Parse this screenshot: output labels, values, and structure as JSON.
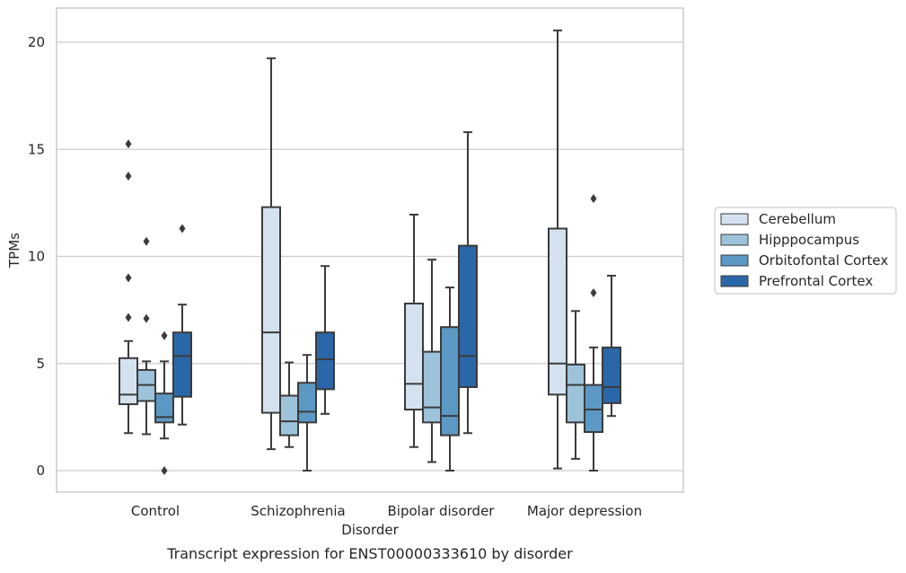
{
  "chart_data": {
    "type": "box",
    "title": "",
    "caption": "Transcript expression for ENST00000333610 by disorder",
    "xlabel": "Disorder",
    "ylabel": "TPMs",
    "categories": [
      "Control",
      "Schizophrenia",
      "Bipolar disorder",
      "Major depression"
    ],
    "ylim": [
      -1,
      21.6
    ],
    "yticks": [
      0,
      5,
      10,
      15,
      20
    ],
    "grid": "horizontal",
    "legend_position": "right",
    "series": [
      {
        "name": "Cerebellum",
        "color": "#d4e2f0",
        "boxes": [
          {
            "min": 1.75,
            "q1": 3.1,
            "median": 3.55,
            "q3": 5.25,
            "max": 6.05,
            "outliers": [
              15.25,
              13.75,
              9.0,
              7.15
            ]
          },
          {
            "min": 1.0,
            "q1": 2.7,
            "median": 6.45,
            "q3": 12.3,
            "max": 19.25,
            "outliers": []
          },
          {
            "min": 1.1,
            "q1": 2.85,
            "median": 4.05,
            "q3": 7.8,
            "max": 11.95,
            "outliers": []
          },
          {
            "min": 0.1,
            "q1": 3.55,
            "median": 5.0,
            "q3": 11.3,
            "max": 20.55,
            "outliers": []
          }
        ]
      },
      {
        "name": "Hipppocampus",
        "color": "#9cc3da",
        "boxes": [
          {
            "min": 1.7,
            "q1": 3.25,
            "median": 4.0,
            "q3": 4.7,
            "max": 5.1,
            "outliers": [
              10.7,
              7.1
            ]
          },
          {
            "min": 1.1,
            "q1": 1.65,
            "median": 2.3,
            "q3": 3.5,
            "max": 5.05,
            "outliers": []
          },
          {
            "min": 0.4,
            "q1": 2.25,
            "median": 2.95,
            "q3": 5.55,
            "max": 9.85,
            "outliers": []
          },
          {
            "min": 0.55,
            "q1": 2.25,
            "median": 4.0,
            "q3": 4.95,
            "max": 7.45,
            "outliers": []
          }
        ]
      },
      {
        "name": "Orbitofontal Cortex",
        "color": "#5b98c4",
        "boxes": [
          {
            "min": 1.5,
            "q1": 2.25,
            "median": 2.5,
            "q3": 3.6,
            "max": 5.1,
            "outliers": [
              6.3,
              0.0
            ]
          },
          {
            "min": 0.0,
            "q1": 2.25,
            "median": 2.75,
            "q3": 4.1,
            "max": 5.4,
            "outliers": []
          },
          {
            "min": 0.0,
            "q1": 1.65,
            "median": 2.55,
            "q3": 6.7,
            "max": 8.55,
            "outliers": []
          },
          {
            "min": 0.0,
            "q1": 1.8,
            "median": 2.85,
            "q3": 4.0,
            "max": 5.75,
            "outliers": [
              12.7,
              8.3
            ]
          }
        ]
      },
      {
        "name": "Prefrontal Cortex",
        "color": "#2a67a8",
        "boxes": [
          {
            "min": 2.15,
            "q1": 3.45,
            "median": 5.35,
            "q3": 6.45,
            "max": 7.75,
            "outliers": [
              11.3
            ]
          },
          {
            "min": 2.65,
            "q1": 3.8,
            "median": 5.2,
            "q3": 6.45,
            "max": 9.55,
            "outliers": []
          },
          {
            "min": 1.75,
            "q1": 3.9,
            "median": 5.35,
            "q3": 10.5,
            "max": 15.8,
            "outliers": []
          },
          {
            "min": 2.55,
            "q1": 3.15,
            "median": 3.9,
            "q3": 5.75,
            "max": 9.1,
            "outliers": []
          }
        ]
      }
    ]
  }
}
